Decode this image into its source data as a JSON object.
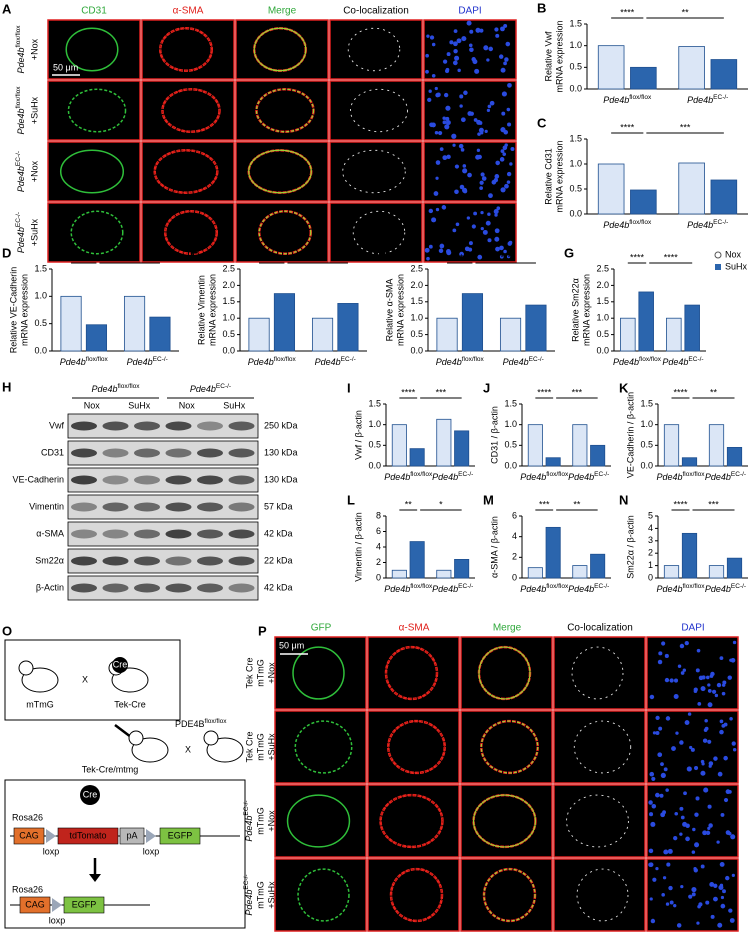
{
  "panel_a": {
    "label": "A",
    "headers": [
      "CD31",
      "α-SMA",
      "Merge",
      "Co-localization",
      "DAPI"
    ],
    "scale": "50 μm",
    "rows": [
      {
        "gene": "Pde4b",
        "sup": "flox/flox",
        "condition": "+Nox"
      },
      {
        "gene": "Pde4b",
        "sup": "flox/flox",
        "condition": "+SuHx"
      },
      {
        "gene": "Pde4b",
        "sup": "EC-/-",
        "condition": "+Nox"
      },
      {
        "gene": "Pde4b",
        "sup": "EC-/-",
        "condition": "+SuHx"
      }
    ]
  },
  "panel_h": {
    "label": "H",
    "groups": [
      {
        "gene": "Pde4b",
        "sup": "flox/flox"
      },
      {
        "gene": "Pde4b",
        "sup": "EC-/-"
      }
    ],
    "lanes": [
      "Nox",
      "SuHx",
      "Nox",
      "SuHx"
    ],
    "proteins": [
      "Vwf",
      "CD31",
      "VE-Cadherin",
      "Vimentin",
      "α-SMA",
      "Sm22α",
      "β-Actin"
    ],
    "sizes": [
      "250 kDa",
      "130 kDa",
      "130 kDa",
      "57 kDa",
      "42 kDa",
      "22 kDa",
      "42 kDa"
    ]
  },
  "panel_o": {
    "label": "O",
    "mouse1": "mTmG",
    "cross": "X",
    "mouse2": "Tek-Cre",
    "cre": "Cre",
    "partner": "PDE4B",
    "partner_sup": "flox/flox",
    "offspring": "Tek-Cre/mtmg",
    "locus": "Rosa26",
    "cag": "CAG",
    "tdtomato": "tdTomato",
    "pa": "pA",
    "egfp": "EGFP",
    "loxp": "loxp"
  },
  "panel_p": {
    "label": "P",
    "headers": [
      "GFP",
      "α-SMA",
      "Merge",
      "Co-localization",
      "DAPI"
    ],
    "scale": "50 μm",
    "rows": [
      {
        "lines": [
          "Tek Cre",
          "mTmG",
          "+Nox"
        ]
      },
      {
        "lines": [
          "Tek Cre",
          "mTmG",
          "+SuHx"
        ]
      },
      {
        "gene": "Pde4b",
        "sup": "EC-/-",
        "lines": [
          "mTmG",
          "+Nox"
        ]
      },
      {
        "gene": "Pde4b",
        "sup": "EC-/-",
        "lines": [
          "mTmG",
          "+SuHx"
        ]
      }
    ]
  },
  "chart_data": [
    {
      "type": "bar",
      "panel": "B",
      "ylabel": [
        "Relative Vwf",
        "mRNA expression"
      ],
      "categories": [
        "Pde4b",
        "Pde4b"
      ],
      "category_sups": [
        "flox/flox",
        "EC-/-"
      ],
      "series": [
        {
          "name": "Nox",
          "color": "#dbe6f6",
          "values": [
            1.0,
            0.98
          ]
        },
        {
          "name": "SuHx",
          "color": "#2b65ad",
          "values": [
            0.5,
            0.68
          ]
        }
      ],
      "ylim": [
        0,
        1.5
      ],
      "yticks": [
        {
          "value": 0,
          "label": "0.0"
        },
        0.5,
        {
          "value": 1,
          "label": "1.0"
        },
        1.5
      ],
      "annotations": [
        "****",
        "**"
      ]
    },
    {
      "type": "bar",
      "panel": "C",
      "ylabel": [
        "Relative Cd31",
        "mRNA expression"
      ],
      "categories": [
        "Pde4b",
        "Pde4b"
      ],
      "category_sups": [
        "flox/flox",
        "EC-/-"
      ],
      "series": [
        {
          "name": "Nox",
          "color": "#dbe6f6",
          "values": [
            1.0,
            1.02
          ]
        },
        {
          "name": "SuHx",
          "color": "#2b65ad",
          "values": [
            0.48,
            0.68
          ]
        }
      ],
      "ylim": [
        0,
        1.5
      ],
      "yticks": [
        {
          "value": 0,
          "label": "0.0"
        },
        0.5,
        {
          "value": 1,
          "label": "1.0"
        },
        1.5
      ],
      "annotations": [
        "****",
        "***"
      ]
    },
    {
      "type": "bar",
      "panel": "D",
      "ylabel": [
        "Relative VE-Cadherin",
        "mRNA expression"
      ],
      "categories": [
        "Pde4b",
        "Pde4b"
      ],
      "category_sups": [
        "flox/flox",
        "EC-/-"
      ],
      "series": [
        {
          "name": "Nox",
          "color": "#dbe6f6",
          "values": [
            1.0,
            1.0
          ]
        },
        {
          "name": "SuHx",
          "color": "#2b65ad",
          "values": [
            0.48,
            0.62
          ]
        }
      ],
      "ylim": [
        0,
        1.5
      ],
      "yticks": [
        {
          "value": 0,
          "label": "0.0"
        },
        0.5,
        {
          "value": 1,
          "label": "1.0"
        },
        1.5
      ],
      "annotations": [
        "****",
        "*"
      ]
    },
    {
      "type": "bar",
      "panel": "E",
      "ylabel": [
        "Relative Vimentin",
        "mRNA expression"
      ],
      "categories": [
        "Pde4b",
        "Pde4b"
      ],
      "category_sups": [
        "flox/flox",
        "EC-/-"
      ],
      "series": [
        {
          "name": "Nox",
          "color": "#dbe6f6",
          "values": [
            1.0,
            1.0
          ]
        },
        {
          "name": "SuHx",
          "color": "#2b65ad",
          "values": [
            1.75,
            1.45
          ]
        }
      ],
      "ylim": [
        0,
        2.5
      ],
      "yticks": [
        {
          "value": 0,
          "label": "0.0"
        },
        0.5,
        {
          "value": 1,
          "label": "1.0"
        },
        1.5,
        {
          "value": 2,
          "label": "2.0"
        },
        2.5
      ],
      "annotations": [
        "****",
        "**"
      ]
    },
    {
      "type": "bar",
      "panel": "F",
      "ylabel": [
        "Relative α-SMA",
        "mRNA expression"
      ],
      "categories": [
        "Pde4b",
        "Pde4b"
      ],
      "category_sups": [
        "flox/flox",
        "EC-/-"
      ],
      "series": [
        {
          "name": "Nox",
          "color": "#dbe6f6",
          "values": [
            1.0,
            1.0
          ]
        },
        {
          "name": "SuHx",
          "color": "#2b65ad",
          "values": [
            1.75,
            1.4
          ]
        }
      ],
      "ylim": [
        0,
        2.5
      ],
      "yticks": [
        {
          "value": 0,
          "label": "0.0"
        },
        0.5,
        {
          "value": 1,
          "label": "1.0"
        },
        1.5,
        {
          "value": 2,
          "label": "2.0"
        },
        2.5
      ],
      "annotations": [
        "****",
        "***"
      ]
    },
    {
      "type": "bar",
      "panel": "G",
      "ylabel": [
        "Relative Sm22α",
        "mRNA expression"
      ],
      "categories": [
        "Pde4b",
        "Pde4b"
      ],
      "category_sups": [
        "flox/flox",
        "EC-/-"
      ],
      "series": [
        {
          "name": "Nox",
          "color": "#dbe6f6",
          "values": [
            1.0,
            1.0
          ]
        },
        {
          "name": "SuHx",
          "color": "#2b65ad",
          "values": [
            1.8,
            1.4
          ]
        }
      ],
      "ylim": [
        0,
        2.5
      ],
      "yticks": [
        {
          "value": 0,
          "label": "0.0"
        },
        0.5,
        {
          "value": 1,
          "label": "1.0"
        },
        1.5,
        {
          "value": 2,
          "label": "2.0"
        },
        2.5
      ],
      "annotations": [
        "****",
        "****"
      ],
      "legend": "upper right"
    },
    {
      "type": "bar",
      "panel": "I",
      "ylabel": [
        "Vwf / β-actin"
      ],
      "categories": [
        "Pde4b",
        "Pde4b"
      ],
      "category_sups": [
        "flox/flox",
        "EC-/-"
      ],
      "series": [
        {
          "name": "Nox",
          "color": "#dbe6f6",
          "values": [
            1.0,
            1.13
          ]
        },
        {
          "name": "SuHx",
          "color": "#2b65ad",
          "values": [
            0.42,
            0.85
          ]
        }
      ],
      "ylim": [
        0,
        1.5
      ],
      "yticks": [
        {
          "value": 0,
          "label": "0.0"
        },
        0.5,
        {
          "value": 1,
          "label": "1.0"
        },
        1.5
      ],
      "annotations": [
        "****",
        "***"
      ]
    },
    {
      "type": "bar",
      "panel": "J",
      "ylabel": [
        "CD31 / β-actin"
      ],
      "categories": [
        "Pde4b",
        "Pde4b"
      ],
      "category_sups": [
        "flox/flox",
        "EC-/-"
      ],
      "series": [
        {
          "name": "Nox",
          "color": "#dbe6f6",
          "values": [
            1.0,
            1.0
          ]
        },
        {
          "name": "SuHx",
          "color": "#2b65ad",
          "values": [
            0.2,
            0.5
          ]
        }
      ],
      "ylim": [
        0,
        1.5
      ],
      "yticks": [
        {
          "value": 0,
          "label": "0.0"
        },
        0.5,
        {
          "value": 1,
          "label": "1.0"
        },
        1.5
      ],
      "annotations": [
        "****",
        "***"
      ]
    },
    {
      "type": "bar",
      "panel": "K",
      "ylabel": [
        "VE-Cadherin / β-actin"
      ],
      "categories": [
        "Pde4b",
        "Pde4b"
      ],
      "category_sups": [
        "flox/flox",
        "EC-/-"
      ],
      "series": [
        {
          "name": "Nox",
          "color": "#dbe6f6",
          "values": [
            1.0,
            1.0
          ]
        },
        {
          "name": "SuHx",
          "color": "#2b65ad",
          "values": [
            0.2,
            0.45
          ]
        }
      ],
      "ylim": [
        0,
        1.5
      ],
      "yticks": [
        {
          "value": 0,
          "label": "0.0"
        },
        0.5,
        {
          "value": 1,
          "label": "1.0"
        },
        1.5
      ],
      "annotations": [
        "****",
        "**"
      ]
    },
    {
      "type": "bar",
      "panel": "L",
      "ylabel": [
        "Vimentin / β-actin"
      ],
      "categories": [
        "Pde4b",
        "Pde4b"
      ],
      "category_sups": [
        "flox/flox",
        "EC-/-"
      ],
      "series": [
        {
          "name": "Nox",
          "color": "#dbe6f6",
          "values": [
            1.0,
            1.0
          ]
        },
        {
          "name": "SuHx",
          "color": "#2b65ad",
          "values": [
            4.7,
            2.4
          ]
        }
      ],
      "ylim": [
        0,
        8
      ],
      "yticks": [
        0,
        2,
        4,
        6,
        8
      ],
      "annotations": [
        "**",
        "*"
      ]
    },
    {
      "type": "bar",
      "panel": "M",
      "ylabel": [
        "α-SMA / β-actin"
      ],
      "categories": [
        "Pde4b",
        "Pde4b"
      ],
      "category_sups": [
        "flox/flox",
        "EC-/-"
      ],
      "series": [
        {
          "name": "Nox",
          "color": "#dbe6f6",
          "values": [
            1.0,
            1.2
          ]
        },
        {
          "name": "SuHx",
          "color": "#2b65ad",
          "values": [
            4.9,
            2.3
          ]
        }
      ],
      "ylim": [
        0,
        6
      ],
      "yticks": [
        0,
        2,
        4,
        6
      ],
      "annotations": [
        "***",
        "**"
      ]
    },
    {
      "type": "bar",
      "panel": "N",
      "ylabel": [
        "Sm22α / β-actin"
      ],
      "categories": [
        "Pde4b",
        "Pde4b"
      ],
      "category_sups": [
        "flox/flox",
        "EC-/-"
      ],
      "series": [
        {
          "name": "Nox",
          "color": "#dbe6f6",
          "values": [
            1.0,
            1.0
          ]
        },
        {
          "name": "SuHx",
          "color": "#2b65ad",
          "values": [
            3.6,
            1.6
          ]
        }
      ],
      "ylim": [
        0,
        5
      ],
      "yticks": [
        0,
        1,
        2,
        3,
        4,
        5
      ],
      "annotations": [
        "****",
        "***"
      ]
    }
  ]
}
